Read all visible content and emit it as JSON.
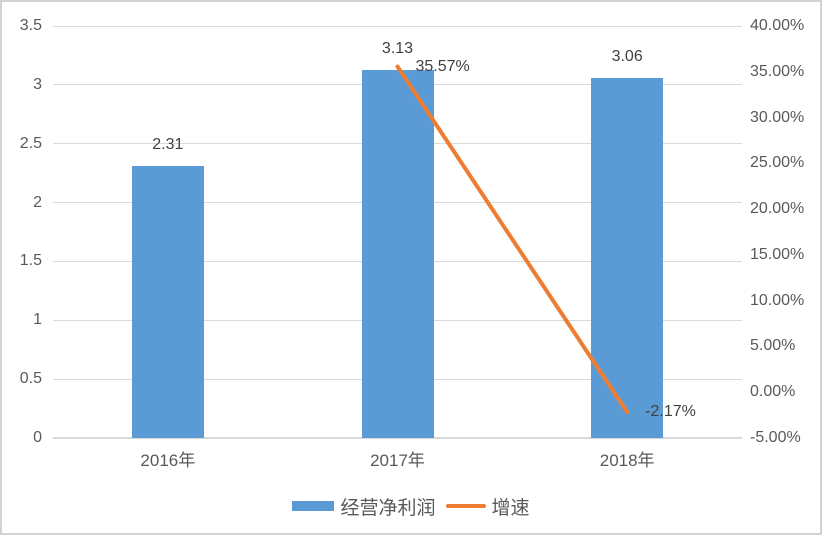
{
  "chart_data": {
    "type": "combo",
    "categories": [
      "2016年",
      "2017年",
      "2018年"
    ],
    "series": [
      {
        "name": "经营净利润",
        "type": "bar",
        "axis": "left",
        "color": "#5B9BD5",
        "values": [
          2.31,
          3.13,
          3.06
        ],
        "labels": [
          "2.31",
          "3.13",
          "3.06"
        ]
      },
      {
        "name": "增速",
        "type": "line",
        "axis": "right",
        "color": "#ED7D31",
        "values": [
          null,
          35.57,
          -2.17
        ],
        "labels": [
          null,
          "35.57%",
          "-2.17%"
        ]
      }
    ],
    "left_axis": {
      "min": 0,
      "max": 3.5,
      "step": 0.5,
      "ticks": [
        "3.5",
        "3",
        "2.5",
        "2",
        "1.5",
        "1",
        "0.5",
        "0"
      ]
    },
    "right_axis": {
      "min": -5,
      "max": 40,
      "step": 5,
      "ticks": [
        "40.00%",
        "35.00%",
        "30.00%",
        "25.00%",
        "20.00%",
        "15.00%",
        "10.00%",
        "5.00%",
        "0.00%",
        "-5.00%"
      ]
    },
    "grid": true,
    "legend_position": "bottom",
    "title": "",
    "xlabel": "",
    "ylabel": "",
    "colors": {
      "bar": "#5B9BD5",
      "line": "#ED7D31",
      "gridline": "#D9D9D9",
      "axis_text": "#595959",
      "data_label_text": "#404040",
      "background": "#FFFFFF",
      "border": "#D2D2D2"
    }
  },
  "legend": {
    "items": [
      {
        "label": "经营净利润",
        "swatch": "bar",
        "color": "#5B9BD5"
      },
      {
        "label": "增速",
        "swatch": "line",
        "color": "#ED7D31"
      }
    ]
  }
}
